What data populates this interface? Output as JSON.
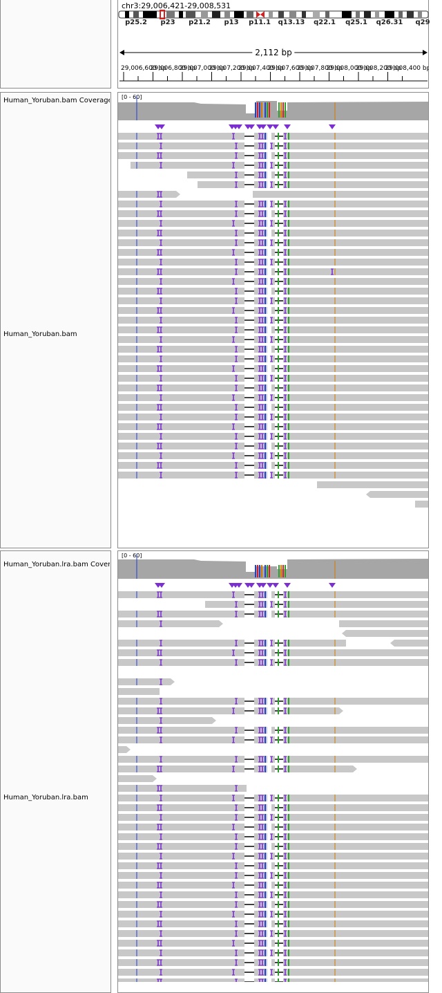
{
  "header": {
    "locus": "chr3:29,006,421-29,008,531",
    "span_label": "2,112 bp",
    "cytobands": [
      "p25.2",
      "p23",
      "p21.2",
      "p13",
      "p11.1",
      "q13.13",
      "q22.1",
      "q25.1",
      "q26.31",
      "q29"
    ],
    "ruler_ticks": [
      "29,006,600 bp",
      "29,006,800 bp",
      "29,007,000 bp",
      "29,007,200 bp",
      "29,007,400 bp",
      "29,007,600 bp",
      "29,007,800 bp",
      "29,008,000 bp",
      "29,008,200 bp",
      "29,008,400 bp"
    ]
  },
  "tracks": [
    {
      "coverage_label": "Human_Yoruban.bam Coverage",
      "coverage_range": "[0 - 60]",
      "alignment_label": "Human_Yoruban.bam"
    },
    {
      "coverage_label": "Human_Yoruban.lra.bam Coverage",
      "coverage_range": "[0 - 60]",
      "alignment_label": "Human_Yoruban.lra.bam"
    }
  ],
  "colors": {
    "read": "#c8c8c8",
    "coverage": "#a6a6a6",
    "insertion": "#7b2fd0",
    "deletion_line": "#000000",
    "mismatch_a": "#2aa02a",
    "mismatch_c": "#1f3fd8",
    "mismatch_g": "#d17a00",
    "mismatch_t": "#d62020",
    "centromere": "#d62020",
    "panel_border": "#8a8a8a"
  }
}
